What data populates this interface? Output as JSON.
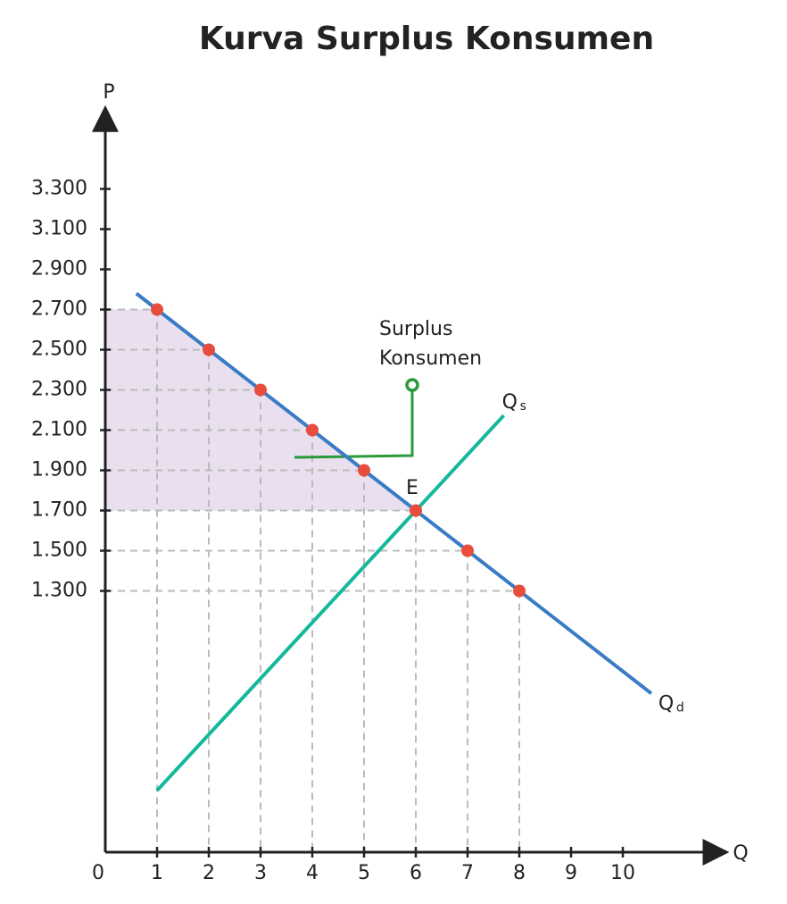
{
  "chart_data": {
    "type": "line",
    "title": "Kurva Surplus Konsumen",
    "x_label": "Q",
    "y_label": "P",
    "xlim": [
      0,
      11.8
    ],
    "ylim": [
      0,
      3650
    ],
    "xticks": [
      0,
      1,
      2,
      3,
      4,
      5,
      6,
      7,
      8,
      9,
      10
    ],
    "yticks": [
      {
        "value": 1300,
        "label": "1.300"
      },
      {
        "value": 1500,
        "label": "1.500"
      },
      {
        "value": 1700,
        "label": "1.700"
      },
      {
        "value": 1900,
        "label": "1.900"
      },
      {
        "value": 2100,
        "label": "2.100"
      },
      {
        "value": 2300,
        "label": "2.300"
      },
      {
        "value": 2500,
        "label": "2.500"
      },
      {
        "value": 2700,
        "label": "2.700"
      },
      {
        "value": 2900,
        "label": "2.900"
      },
      {
        "value": 3100,
        "label": "3.100"
      },
      {
        "value": 3300,
        "label": "3.300"
      }
    ],
    "series": [
      {
        "label_main": "Q",
        "label_sub": "d",
        "color": "#3a7cc4",
        "x": [
          0.6,
          10.55
        ],
        "values": [
          2780,
          790
        ]
      },
      {
        "label_main": "Q",
        "label_sub": "s",
        "color": "#14b89a",
        "x": [
          1,
          7.7
        ],
        "values": [
          307,
          2173
        ]
      }
    ],
    "points": {
      "color": "#e84c3d",
      "x": [
        1,
        2,
        3,
        4,
        5,
        6,
        7,
        8
      ],
      "values": [
        2700,
        2500,
        2300,
        2100,
        1900,
        1700,
        1500,
        1300
      ]
    },
    "equilibrium_label": "E",
    "surplus": {
      "color": "#e9dfee",
      "x_range": [
        0,
        6
      ],
      "price_top": 2700,
      "price_eq": 1700
    },
    "annotation": [
      "Surplus",
      "Konsumen"
    ]
  }
}
